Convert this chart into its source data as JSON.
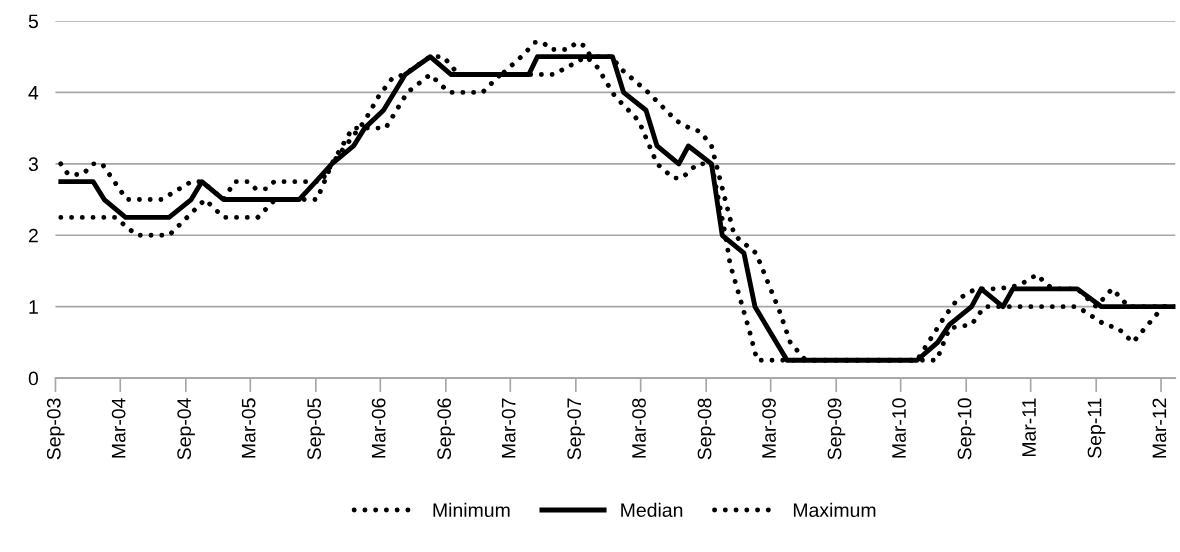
{
  "chart_data": {
    "type": "line",
    "xlim": [
      "2003-09-01",
      "2012-04-10"
    ],
    "ylim": [
      0,
      5
    ],
    "yticks": [
      0,
      1,
      2,
      3,
      4,
      5
    ],
    "xticks": [
      {
        "value": "2003-09",
        "label": "Sep-03"
      },
      {
        "value": "2004-03",
        "label": "Mar-04"
      },
      {
        "value": "2004-09",
        "label": "Sep-04"
      },
      {
        "value": "2005-03",
        "label": "Mar-05"
      },
      {
        "value": "2005-09",
        "label": "Sep-05"
      },
      {
        "value": "2006-03",
        "label": "Mar-06"
      },
      {
        "value": "2006-09",
        "label": "Sep-06"
      },
      {
        "value": "2007-03",
        "label": "Mar-07"
      },
      {
        "value": "2007-09",
        "label": "Sep-07"
      },
      {
        "value": "2008-03",
        "label": "Mar-08"
      },
      {
        "value": "2008-09",
        "label": "Sep-08"
      },
      {
        "value": "2009-03",
        "label": "Mar-09"
      },
      {
        "value": "2009-09",
        "label": "Sep-09"
      },
      {
        "value": "2010-03",
        "label": "Mar-10"
      },
      {
        "value": "2010-09",
        "label": "Sep-10"
      },
      {
        "value": "2011-03",
        "label": "Mar-11"
      },
      {
        "value": "2011-09",
        "label": "Sep-11"
      },
      {
        "value": "2012-03",
        "label": "Mar-12"
      }
    ],
    "grid": "y",
    "legend": "bottom",
    "series": [
      {
        "name": "Minimum",
        "color": "#000000",
        "line_style": "dotted",
        "x": [
          "2003-09-16",
          "2004-02-16",
          "2004-04-16",
          "2004-07-16",
          "2004-10-25",
          "2004-12-16",
          "2005-03-22",
          "2005-05-10",
          "2005-09-04",
          "2005-10-16",
          "2005-12-13",
          "2006-03-16",
          "2006-05-16",
          "2006-07-19",
          "2006-09-10",
          "2006-12-13",
          "2007-02-01",
          "2007-07-01",
          "2007-10-01",
          "2007-11-01",
          "2007-12-19",
          "2008-02-25",
          "2008-04-16",
          "2008-06-01",
          "2008-06-25",
          "2008-08-07",
          "2008-09-16",
          "2008-10-25",
          "2008-11-07",
          "2009-01-01",
          "2009-01-22",
          "2010-06-10",
          "2010-07-16",
          "2010-09-16",
          "2010-10-22",
          "2011-07-10",
          "2011-09-25",
          "2011-11-01",
          "2011-12-13",
          "2012-03-07",
          "2012-04-10"
        ],
        "values": [
          2.25,
          2.25,
          2.0,
          2.0,
          2.5,
          2.25,
          2.25,
          2.5,
          2.5,
          3.0,
          3.5,
          3.5,
          4.0,
          4.25,
          4.0,
          4.0,
          4.25,
          4.25,
          4.5,
          4.35,
          3.95,
          3.6,
          3.0,
          2.8,
          2.8,
          3.0,
          3.0,
          2.0,
          1.6,
          0.65,
          0.25,
          0.25,
          0.7,
          0.75,
          1.0,
          1.0,
          0.75,
          0.7,
          0.5,
          1.0,
          1.0
        ]
      },
      {
        "name": "Median",
        "color": "#000000",
        "line_style": "solid",
        "x": [
          "2003-09-16",
          "2003-12-16",
          "2004-01-16",
          "2004-03-16",
          "2004-07-16",
          "2004-09-16",
          "2004-10-16",
          "2004-12-16",
          "2005-07-16",
          "2005-09-01",
          "2005-10-16",
          "2005-12-16",
          "2006-01-16",
          "2006-03-10",
          "2006-05-10",
          "2006-07-19",
          "2006-09-16",
          "2007-04-22",
          "2007-05-16",
          "2007-12-13",
          "2008-01-13",
          "2008-03-16",
          "2008-04-16",
          "2008-06-16",
          "2008-07-13",
          "2008-09-16",
          "2008-10-16",
          "2008-12-16",
          "2009-01-16",
          "2009-04-16",
          "2010-04-16",
          "2010-06-13",
          "2010-07-16",
          "2010-09-16",
          "2010-10-13",
          "2010-12-13",
          "2011-01-10",
          "2011-07-10",
          "2011-09-16",
          "2012-04-10"
        ],
        "values": [
          2.75,
          2.75,
          2.5,
          2.25,
          2.25,
          2.5,
          2.75,
          2.5,
          2.5,
          2.75,
          3.0,
          3.25,
          3.5,
          3.75,
          4.25,
          4.5,
          4.25,
          4.25,
          4.5,
          4.5,
          4.0,
          3.75,
          3.25,
          3.0,
          3.25,
          3.0,
          2.0,
          1.75,
          1.0,
          0.25,
          0.25,
          0.5,
          0.75,
          1.0,
          1.25,
          1.0,
          1.25,
          1.25,
          1.0,
          1.0
        ]
      },
      {
        "name": "Maximum",
        "color": "#000000",
        "line_style": "dotted",
        "x": [
          "2003-09-16",
          "2003-10-07",
          "2003-11-16",
          "2003-12-16",
          "2004-01-10",
          "2004-03-19",
          "2004-06-25",
          "2004-09-16",
          "2004-10-16",
          "2004-12-16",
          "2005-01-16",
          "2005-02-25",
          "2005-03-16",
          "2005-04-16",
          "2005-05-07",
          "2005-09-16",
          "2005-10-16",
          "2006-01-16",
          "2006-02-25",
          "2006-04-04",
          "2006-05-07",
          "2006-07-19",
          "2006-08-25",
          "2006-10-07",
          "2007-02-04",
          "2007-04-01",
          "2007-05-10",
          "2007-06-01",
          "2007-06-22",
          "2007-08-10",
          "2007-09-04",
          "2007-09-25",
          "2007-10-13",
          "2007-12-13",
          "2008-01-01",
          "2008-03-22",
          "2008-05-01",
          "2008-06-10",
          "2008-07-16",
          "2008-08-16",
          "2008-09-16",
          "2008-11-19",
          "2009-01-19",
          "2009-03-25",
          "2009-04-25",
          "2009-06-07",
          "2010-04-16",
          "2010-07-01",
          "2010-08-07",
          "2010-09-28",
          "2010-12-01",
          "2011-01-28",
          "2011-03-19",
          "2011-04-07",
          "2011-05-01",
          "2011-07-10",
          "2011-09-01",
          "2011-10-16",
          "2011-12-01",
          "2012-04-10"
        ],
        "values": [
          3.0,
          2.85,
          2.85,
          3.0,
          3.0,
          2.5,
          2.5,
          2.75,
          2.75,
          2.5,
          2.75,
          2.75,
          2.65,
          2.65,
          2.75,
          2.75,
          3.0,
          3.6,
          3.95,
          4.2,
          4.25,
          4.5,
          4.5,
          4.25,
          4.25,
          4.5,
          4.7,
          4.7,
          4.6,
          4.6,
          4.7,
          4.65,
          4.5,
          4.5,
          4.35,
          4.0,
          3.8,
          3.6,
          3.5,
          3.45,
          3.25,
          2.0,
          1.75,
          0.95,
          0.5,
          0.25,
          0.25,
          0.85,
          1.1,
          1.25,
          1.25,
          1.3,
          1.45,
          1.35,
          1.25,
          1.25,
          1.0,
          1.25,
          1.0,
          1.0
        ]
      }
    ]
  }
}
